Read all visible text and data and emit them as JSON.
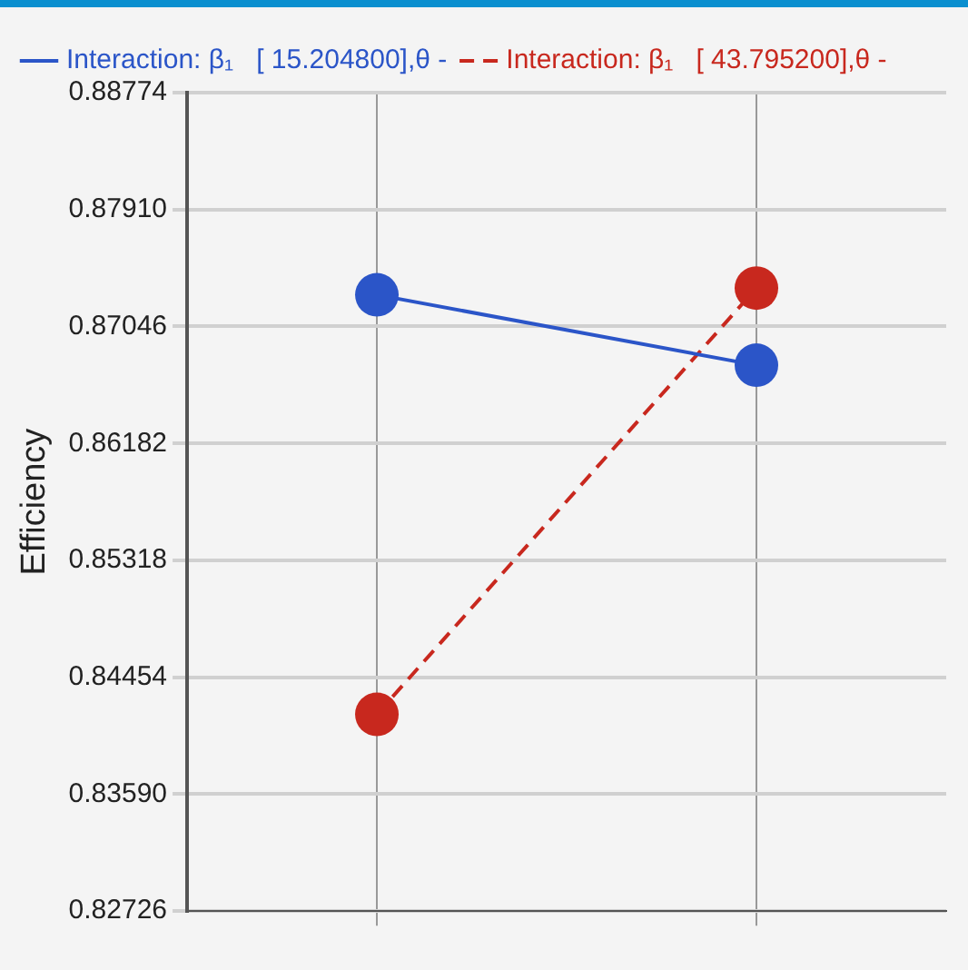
{
  "chart_data": {
    "type": "line",
    "ylabel": "Efficiency",
    "categories": [
      null,
      null
    ],
    "series": [
      {
        "name": "Interaction: β₁   [ 15.204800],θ -",
        "color": "#2b55c8",
        "values": [
          0.8728,
          0.8676
        ],
        "line_style": "solid"
      },
      {
        "name": "Interaction: β₁   [ 43.795200],θ -",
        "color": "#c8281e",
        "values": [
          0.8418,
          0.8733
        ],
        "line_style": "dashed"
      }
    ],
    "ylim": [
      0.82726,
      0.88774
    ],
    "yticks": [
      0.82726,
      {
        "value": 0.8359,
        "label": "0.83590"
      },
      0.84454,
      0.85318,
      0.86182,
      0.87046,
      {
        "value": 0.8791,
        "label": "0.87910"
      },
      0.88774
    ],
    "grid": true,
    "legend": "top",
    "marker": "circle"
  }
}
